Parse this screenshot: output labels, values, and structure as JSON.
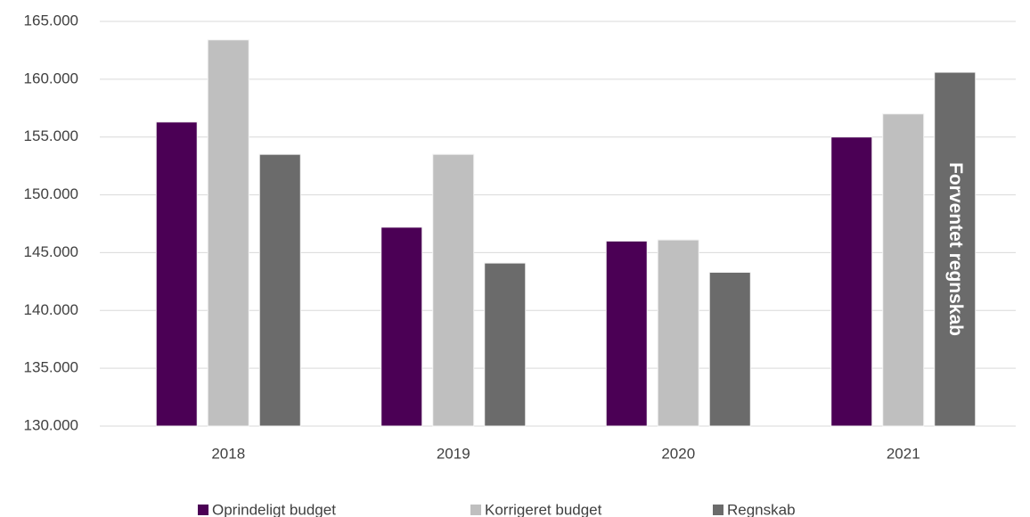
{
  "chart_data": {
    "type": "bar",
    "categories": [
      "2018",
      "2019",
      "2020",
      "2021"
    ],
    "series": [
      {
        "name": "Oprindeligt budget",
        "color": "#4b0055",
        "values": [
          156300,
          147200,
          146000,
          155000
        ]
      },
      {
        "name": "Korrigeret budget",
        "color": "#bfbfbf",
        "values": [
          163400,
          153500,
          146100,
          157000
        ]
      },
      {
        "name": "Regnskab",
        "color": "#6b6b6b",
        "values": [
          153500,
          144100,
          143300,
          160600
        ]
      }
    ],
    "annotation": "Forventet regnskab",
    "ylim": [
      130000,
      165000
    ],
    "yticks": [
      {
        "value": 130000,
        "label": "130.000"
      },
      {
        "value": 135000,
        "label": "135.000"
      },
      {
        "value": 140000,
        "label": "140.000"
      },
      {
        "value": 145000,
        "label": "145.000"
      },
      {
        "value": 150000,
        "label": "150.000"
      },
      {
        "value": 155000,
        "label": "155.000"
      },
      {
        "value": 160000,
        "label": "160.000"
      },
      {
        "value": 165000,
        "label": "165.000"
      }
    ],
    "grid": true,
    "legend": "bottom"
  }
}
